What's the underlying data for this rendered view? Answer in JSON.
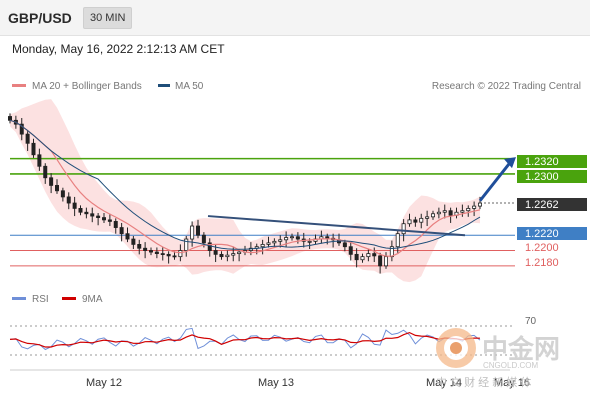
{
  "header": {
    "pair": "GBP/USD",
    "timeframe": "30 MIN",
    "datetime": "Monday, May 16, 2022 2:12:13 AM CET",
    "copyright": "Research © 2022 Trading Central"
  },
  "legend": {
    "ma20": "MA 20 + Bollinger Bands",
    "ma50": "MA 50",
    "rsi": "RSI",
    "rsi_ma": "9MA"
  },
  "colors": {
    "ma20": "#e88080",
    "ma50": "#1f4e79",
    "band": "#fbdcdc",
    "green_level": "#4aa30d",
    "blue_level": "#3f7fc5",
    "red_level": "#e06060",
    "arrow": "#1f4e9a",
    "candle": "#222222"
  },
  "chart_data": [
    {
      "type": "candlestick",
      "xlabels": [
        "May 12",
        "May 13",
        "May 14",
        "May 16"
      ],
      "levels": [
        {
          "value": 1.232,
          "label": "1.2320",
          "kind": "resistance"
        },
        {
          "value": 1.23,
          "label": "1.2300",
          "kind": "resistance"
        },
        {
          "value": 1.2262,
          "label": "1.2262",
          "kind": "last"
        },
        {
          "value": 1.222,
          "label": "1.2220",
          "kind": "pivot"
        },
        {
          "value": 1.22,
          "label": "1.2200",
          "kind": "support"
        },
        {
          "value": 1.218,
          "label": "1.2180",
          "kind": "support"
        }
      ],
      "ylim": [
        1.2155,
        1.239
      ],
      "close_path": [
        1.237,
        1.2365,
        1.2352,
        1.234,
        1.2325,
        1.231,
        1.2295,
        1.2285,
        1.2278,
        1.227,
        1.2262,
        1.2255,
        1.225,
        1.2248,
        1.2245,
        1.2243,
        1.224,
        1.2238,
        1.223,
        1.2222,
        1.2215,
        1.2208,
        1.2203,
        1.22,
        1.2198,
        1.2196,
        1.2195,
        1.2193,
        1.2192,
        1.22,
        1.2215,
        1.2232,
        1.222,
        1.221,
        1.22,
        1.2195,
        1.2192,
        1.2194,
        1.2196,
        1.2198,
        1.22,
        1.2203,
        1.2205,
        1.2208,
        1.221,
        1.2212,
        1.2214,
        1.2217,
        1.2218,
        1.2215,
        1.2212,
        1.2212,
        1.2215,
        1.2218,
        1.2216,
        1.2214,
        1.221,
        1.2205,
        1.2195,
        1.2188,
        1.2192,
        1.2196,
        1.2193,
        1.218,
        1.2192,
        1.2205,
        1.2222,
        1.2235,
        1.224,
        1.2237,
        1.2242,
        1.2244,
        1.2248,
        1.225,
        1.2252,
        1.2246,
        1.225,
        1.2252,
        1.2255,
        1.2258,
        1.2262
      ]
    },
    {
      "type": "line",
      "name": "RSI",
      "level_label": "70"
    }
  ],
  "watermark": {
    "text": "中金网",
    "sub": "CNGOLD.COM",
    "tagline": "中 文 财 经 新 媒 体"
  }
}
